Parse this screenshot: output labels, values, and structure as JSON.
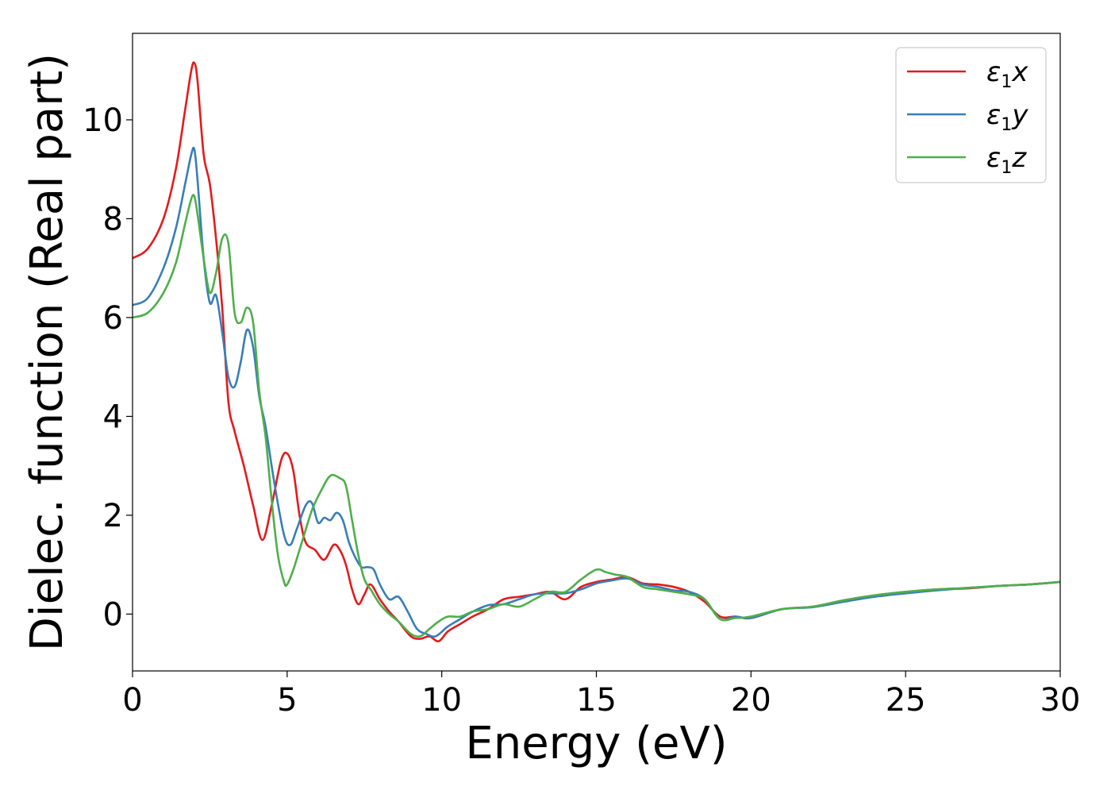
{
  "chart_data": {
    "type": "line",
    "xlabel": "Energy (eV)",
    "ylabel": "Dielec. function (Real part)",
    "xlim": [
      0,
      30
    ],
    "ylim": [
      -1.15,
      11.75
    ],
    "xticks": [
      0,
      5,
      10,
      15,
      20,
      25,
      30
    ],
    "yticks": [
      0,
      2,
      4,
      6,
      8,
      10
    ],
    "xtick_labels": [
      "0",
      "5",
      "10",
      "15",
      "20",
      "25",
      "30"
    ],
    "ytick_labels": [
      "0",
      "2",
      "4",
      "6",
      "8",
      "10"
    ],
    "grid": false,
    "legend_position": "top-right",
    "series": [
      {
        "name": "ε1x",
        "legend_main": "ε",
        "legend_sub": "1",
        "legend_var": "x",
        "color": "#e41a1c",
        "x": [
          0,
          0.5,
          1.0,
          1.4,
          1.7,
          1.9,
          2.0,
          2.1,
          2.3,
          2.5,
          2.7,
          2.9,
          3.1,
          3.3,
          3.6,
          3.9,
          4.2,
          4.5,
          4.8,
          5.0,
          5.2,
          5.4,
          5.6,
          5.9,
          6.2,
          6.5,
          6.7,
          6.9,
          7.1,
          7.3,
          7.5,
          7.7,
          8.0,
          8.3,
          8.6,
          9.0,
          9.3,
          9.6,
          9.9,
          10.2,
          10.6,
          11.0,
          11.5,
          12.0,
          12.5,
          13.0,
          13.5,
          14.0,
          14.5,
          15.0,
          15.5,
          16.0,
          16.5,
          17.0,
          17.5,
          18.0,
          18.5,
          19.0,
          19.5,
          20.0,
          21.0,
          22.0,
          23.0,
          24.0,
          25.0,
          26.0,
          27.0,
          28.0,
          29.0,
          30.0
        ],
        "values": [
          7.2,
          7.4,
          8.0,
          9.0,
          10.2,
          11.0,
          11.15,
          10.8,
          9.3,
          8.7,
          7.6,
          6.2,
          4.3,
          3.7,
          3.0,
          2.2,
          1.5,
          2.2,
          3.1,
          3.25,
          2.9,
          2.0,
          1.45,
          1.3,
          1.1,
          1.4,
          1.3,
          1.0,
          0.5,
          0.2,
          0.4,
          0.6,
          0.3,
          0.05,
          -0.15,
          -0.45,
          -0.5,
          -0.45,
          -0.55,
          -0.35,
          -0.2,
          -0.05,
          0.1,
          0.3,
          0.35,
          0.4,
          0.45,
          0.3,
          0.55,
          0.65,
          0.7,
          0.75,
          0.62,
          0.6,
          0.55,
          0.45,
          0.25,
          -0.05,
          -0.05,
          -0.08,
          0.1,
          0.15,
          0.28,
          0.38,
          0.45,
          0.5,
          0.52,
          0.57,
          0.6,
          0.65
        ]
      },
      {
        "name": "ε1y",
        "legend_main": "ε",
        "legend_sub": "1",
        "legend_var": "y",
        "color": "#377eb8",
        "x": [
          0,
          0.5,
          1.0,
          1.4,
          1.7,
          1.9,
          2.0,
          2.1,
          2.3,
          2.5,
          2.7,
          2.9,
          3.1,
          3.3,
          3.5,
          3.7,
          3.9,
          4.1,
          4.3,
          4.6,
          4.9,
          5.1,
          5.3,
          5.6,
          5.8,
          6.0,
          6.2,
          6.4,
          6.6,
          6.8,
          7.0,
          7.2,
          7.4,
          7.6,
          7.8,
          8.0,
          8.3,
          8.6,
          8.9,
          9.2,
          9.5,
          9.8,
          10.2,
          10.6,
          11.0,
          11.5,
          12.0,
          12.5,
          13.0,
          13.5,
          14.0,
          14.5,
          15.0,
          15.5,
          16.0,
          16.5,
          17.0,
          17.5,
          18.0,
          18.5,
          19.0,
          19.5,
          20.0,
          21.0,
          22.0,
          23.0,
          24.0,
          25.0,
          26.0,
          27.0,
          28.0,
          29.0,
          30.0
        ],
        "values": [
          6.25,
          6.4,
          7.0,
          7.8,
          8.7,
          9.3,
          9.4,
          8.8,
          7.2,
          6.3,
          6.45,
          5.7,
          4.8,
          4.6,
          5.1,
          5.75,
          5.4,
          4.4,
          3.8,
          2.6,
          1.6,
          1.4,
          1.7,
          2.2,
          2.25,
          1.85,
          1.95,
          1.9,
          2.05,
          1.9,
          1.45,
          1.15,
          0.95,
          0.95,
          0.9,
          0.6,
          0.3,
          0.35,
          0.05,
          -0.3,
          -0.4,
          -0.45,
          -0.25,
          -0.1,
          0.05,
          0.18,
          0.2,
          0.3,
          0.4,
          0.42,
          0.42,
          0.5,
          0.62,
          0.68,
          0.72,
          0.6,
          0.55,
          0.48,
          0.45,
          0.3,
          -0.1,
          -0.05,
          -0.08,
          0.1,
          0.14,
          0.25,
          0.35,
          0.42,
          0.48,
          0.53,
          0.57,
          0.6,
          0.65
        ]
      },
      {
        "name": "ε1z",
        "legend_main": "ε",
        "legend_sub": "1",
        "legend_var": "z",
        "color": "#4daf4a",
        "x": [
          0,
          0.5,
          1.0,
          1.4,
          1.7,
          1.9,
          2.0,
          2.1,
          2.3,
          2.5,
          2.7,
          2.9,
          3.1,
          3.3,
          3.5,
          3.7,
          3.9,
          4.1,
          4.3,
          4.5,
          4.7,
          4.9,
          5.0,
          5.2,
          5.5,
          5.8,
          6.1,
          6.4,
          6.7,
          6.9,
          7.1,
          7.3,
          7.5,
          7.7,
          8.0,
          8.3,
          8.6,
          9.0,
          9.3,
          9.6,
          9.9,
          10.2,
          10.6,
          11.0,
          11.5,
          12.0,
          12.5,
          13.0,
          13.5,
          14.0,
          14.5,
          15.0,
          15.3,
          15.6,
          16.0,
          16.5,
          17.0,
          17.5,
          18.0,
          18.5,
          19.0,
          19.5,
          20.0,
          21.0,
          22.0,
          23.0,
          24.0,
          25.0,
          26.0,
          27.0,
          28.0,
          29.0,
          30.0
        ],
        "values": [
          6.0,
          6.1,
          6.5,
          7.1,
          7.9,
          8.4,
          8.45,
          8.1,
          7.2,
          6.5,
          6.9,
          7.6,
          7.5,
          6.1,
          5.9,
          6.2,
          5.9,
          4.5,
          3.6,
          2.3,
          1.2,
          0.65,
          0.6,
          0.9,
          1.5,
          2.1,
          2.5,
          2.8,
          2.75,
          2.6,
          1.9,
          1.2,
          0.7,
          0.5,
          0.2,
          0.0,
          -0.15,
          -0.4,
          -0.45,
          -0.3,
          -0.15,
          -0.05,
          -0.05,
          0.05,
          0.1,
          0.2,
          0.15,
          0.3,
          0.45,
          0.45,
          0.7,
          0.9,
          0.85,
          0.8,
          0.75,
          0.55,
          0.5,
          0.45,
          0.4,
          0.3,
          -0.1,
          -0.08,
          -0.05,
          0.1,
          0.15,
          0.28,
          0.38,
          0.45,
          0.5,
          0.53,
          0.57,
          0.6,
          0.65
        ]
      }
    ]
  }
}
